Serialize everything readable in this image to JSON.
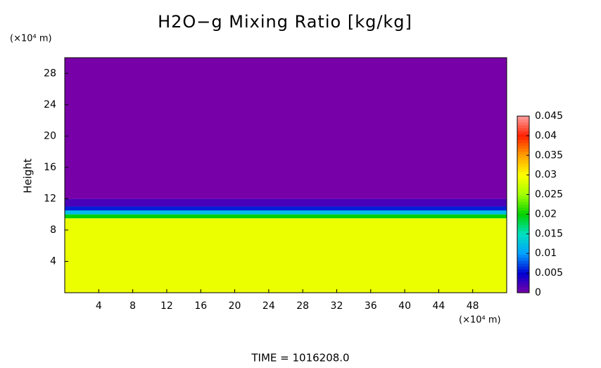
{
  "chart_data": {
    "type": "contour",
    "title": "H2O−g Mixing Ratio [kg/kg]",
    "ylabel": "Height",
    "y_unit": "(×10⁴ m)",
    "x_unit": "(×10⁴ m)",
    "footer": "TIME = 1016208.0",
    "xlim": [
      0,
      52
    ],
    "xticks": [
      4,
      8,
      12,
      16,
      20,
      24,
      28,
      32,
      36,
      40,
      44,
      48
    ],
    "ylim": [
      0,
      30
    ],
    "yticks": [
      4,
      8,
      12,
      16,
      20,
      24,
      28
    ],
    "profile": {
      "height_edges": [
        0,
        9.5,
        10,
        10.5,
        11,
        12,
        30
      ],
      "values": [
        0.029,
        0.02,
        0.012,
        0.006,
        0.002,
        0
      ]
    },
    "colorbar": {
      "lim": [
        0,
        0.045
      ],
      "ticks": [
        0,
        0.005,
        0.01,
        0.015,
        0.02,
        0.025,
        0.03,
        0.035,
        0.04,
        0.045
      ],
      "colormap": [
        "#7800a8",
        "#0000d0",
        "#00a0ff",
        "#00e0c0",
        "#00d000",
        "#a0ff00",
        "#ffff00",
        "#ffa000",
        "#ff2000",
        "#ffa0a0"
      ]
    }
  }
}
